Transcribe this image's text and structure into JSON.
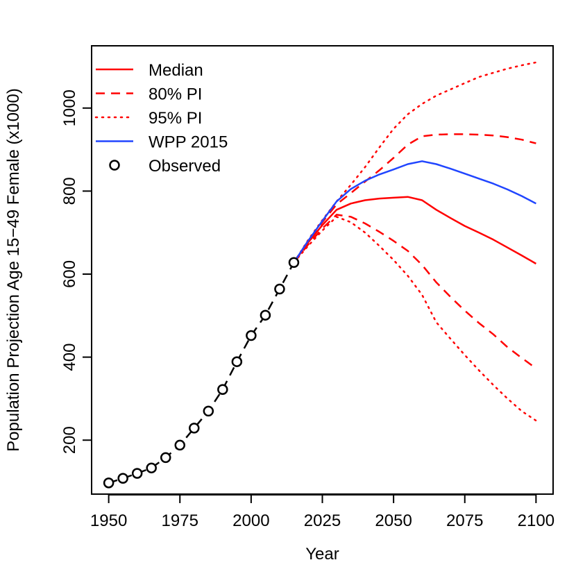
{
  "chart_data": {
    "type": "line",
    "title": "",
    "xlabel": "Year",
    "ylabel": "Population Projection Age 15−49 Female (x1000)",
    "xlim": [
      1944,
      2106
    ],
    "ylim": [
      70,
      1150
    ],
    "x_ticks": [
      1950,
      1975,
      2000,
      2025,
      2050,
      2075,
      2100
    ],
    "y_ticks": [
      200,
      400,
      600,
      800,
      1000
    ],
    "legend_position": "top-left",
    "colors": {
      "red": "#ff0000",
      "blue": "#2045ff",
      "black": "#000000"
    },
    "observed": {
      "name": "Observed",
      "x": [
        1950,
        1955,
        1960,
        1965,
        1970,
        1975,
        1980,
        1985,
        1990,
        1995,
        2000,
        2005,
        2010,
        2015
      ],
      "y": [
        97,
        108,
        120,
        133,
        158,
        188,
        229,
        270,
        322,
        389,
        452,
        501,
        564,
        628
      ]
    },
    "series": [
      {
        "name": "Median",
        "style": "solid",
        "color": "#ff0000",
        "x": [
          2015,
          2020,
          2025,
          2030,
          2035,
          2040,
          2045,
          2050,
          2055,
          2060,
          2065,
          2070,
          2075,
          2080,
          2085,
          2090,
          2095,
          2100
        ],
        "y": [
          628,
          676,
          718,
          755,
          770,
          778,
          782,
          784,
          786,
          778,
          755,
          735,
          716,
          700,
          683,
          664,
          645,
          625
        ]
      },
      {
        "name": "80% PI (upper)",
        "style": "dashed",
        "color": "#ff0000",
        "x": [
          2015,
          2020,
          2025,
          2030,
          2035,
          2040,
          2045,
          2050,
          2055,
          2060,
          2065,
          2070,
          2075,
          2080,
          2085,
          2090,
          2095,
          2100
        ],
        "y": [
          628,
          680,
          725,
          768,
          795,
          823,
          850,
          880,
          912,
          932,
          936,
          937,
          937,
          936,
          934,
          930,
          924,
          915
        ]
      },
      {
        "name": "80% PI (lower)",
        "style": "dashed",
        "color": "#ff0000",
        "x": [
          2015,
          2020,
          2025,
          2030,
          2035,
          2040,
          2045,
          2050,
          2055,
          2060,
          2065,
          2070,
          2075,
          2080,
          2085,
          2090,
          2095,
          2100
        ],
        "y": [
          628,
          671,
          710,
          743,
          738,
          722,
          702,
          680,
          656,
          622,
          580,
          545,
          512,
          482,
          455,
          424,
          398,
          373
        ]
      },
      {
        "name": "95% PI (upper)",
        "style": "dotted",
        "color": "#ff0000",
        "x": [
          2015,
          2020,
          2025,
          2030,
          2035,
          2040,
          2045,
          2050,
          2055,
          2060,
          2065,
          2070,
          2075,
          2080,
          2085,
          2090,
          2095,
          2100
        ],
        "y": [
          628,
          682,
          730,
          775,
          815,
          858,
          905,
          950,
          985,
          1010,
          1030,
          1045,
          1060,
          1075,
          1085,
          1095,
          1103,
          1110
        ]
      },
      {
        "name": "95% PI (lower)",
        "style": "dotted",
        "color": "#ff0000",
        "x": [
          2015,
          2020,
          2025,
          2030,
          2035,
          2040,
          2045,
          2050,
          2055,
          2060,
          2065,
          2070,
          2075,
          2080,
          2085,
          2090,
          2095,
          2100
        ],
        "y": [
          628,
          668,
          705,
          738,
          725,
          700,
          668,
          634,
          596,
          550,
          484,
          444,
          405,
          368,
          333,
          300,
          270,
          247
        ]
      },
      {
        "name": "WPP 2015",
        "style": "solid",
        "color": "#2045ff",
        "x": [
          2015,
          2020,
          2025,
          2030,
          2035,
          2040,
          2045,
          2050,
          2055,
          2060,
          2065,
          2070,
          2075,
          2080,
          2085,
          2090,
          2095,
          2100
        ],
        "y": [
          628,
          680,
          728,
          775,
          805,
          825,
          840,
          852,
          865,
          872,
          865,
          854,
          842,
          830,
          818,
          804,
          788,
          770
        ]
      }
    ],
    "legend": [
      {
        "label": "Median",
        "style": "solid",
        "color": "#ff0000"
      },
      {
        "label": "80% PI",
        "style": "dashed",
        "color": "#ff0000"
      },
      {
        "label": "95% PI",
        "style": "dotted",
        "color": "#ff0000"
      },
      {
        "label": "WPP 2015",
        "style": "solid",
        "color": "#2045ff"
      },
      {
        "label": "Observed",
        "style": "circle",
        "color": "#000000"
      }
    ]
  }
}
